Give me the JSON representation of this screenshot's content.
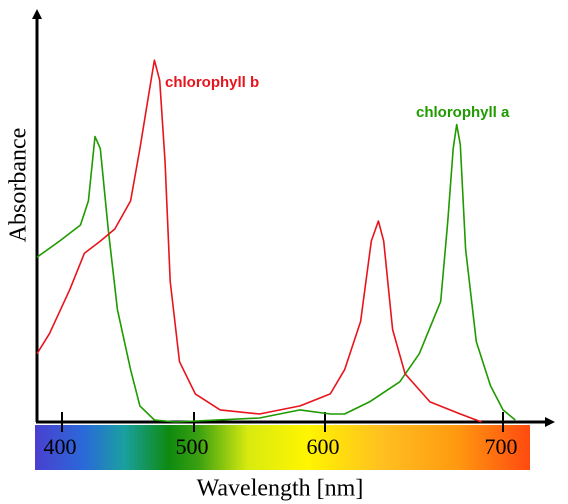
{
  "chart_data": {
    "type": "line",
    "x_label": "Wavelength [nm]",
    "y_label": "Absorbance",
    "xlim": [
      380,
      724
    ],
    "xticks": [
      400,
      500,
      600,
      700
    ],
    "ylim": [
      0,
      1
    ],
    "series": [
      {
        "name": "chlorophyll a",
        "color": "#1f9a00",
        "x": [
          380,
          398,
          414,
          420,
          425,
          429,
          435,
          442,
          452,
          459,
          470,
          486,
          550,
          581,
          603,
          611,
          625,
          642,
          653,
          665,
          669,
          672,
          674,
          676,
          679,
          685,
          693,
          700,
          707
        ],
        "values": [
          0.41,
          0.45,
          0.49,
          0.55,
          0.71,
          0.68,
          0.48,
          0.28,
          0.13,
          0.04,
          0.005,
          0,
          0.01,
          0.03,
          0.02,
          0.02,
          0.05,
          0.1,
          0.17,
          0.3,
          0.5,
          0.68,
          0.74,
          0.69,
          0.43,
          0.2,
          0.09,
          0.03,
          0.005
        ]
      },
      {
        "name": "chlorophyll b",
        "color": "#e8141c",
        "x": [
          380,
          390,
          406,
          417,
          429,
          440,
          452,
          459,
          467,
          470,
          474,
          478,
          482,
          489,
          501,
          520,
          550,
          581,
          603,
          611,
          620,
          626,
          630,
          633,
          638,
          645,
          659,
          676,
          688
        ],
        "values": [
          0.17,
          0.22,
          0.33,
          0.42,
          0.45,
          0.48,
          0.55,
          0.68,
          0.84,
          0.9,
          0.85,
          0.65,
          0.35,
          0.15,
          0.07,
          0.03,
          0.02,
          0.04,
          0.07,
          0.13,
          0.25,
          0.45,
          0.5,
          0.45,
          0.23,
          0.12,
          0.05,
          0.02,
          0
        ]
      }
    ]
  }
}
